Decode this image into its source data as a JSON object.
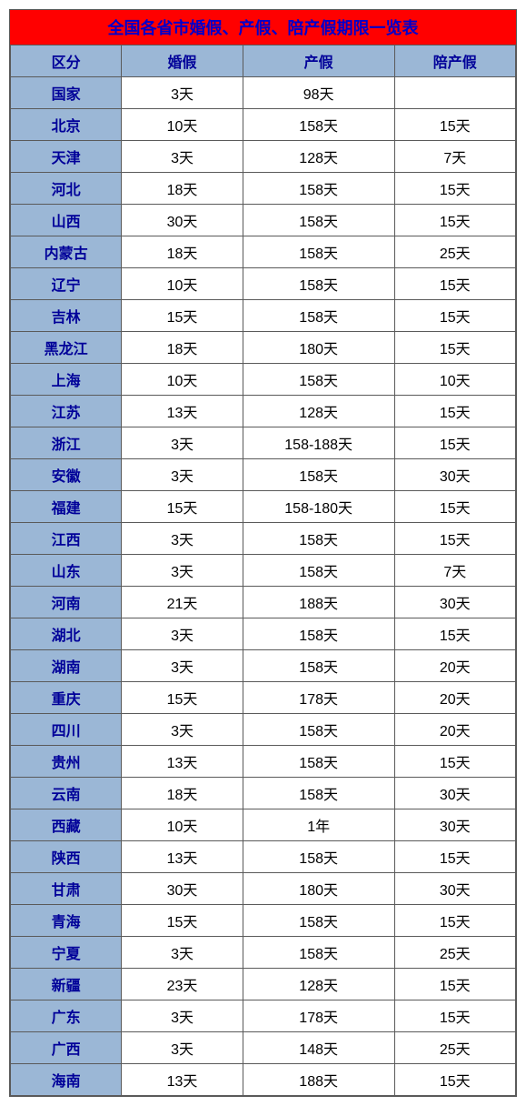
{
  "title": "全国各省市婚假、产假、陪产假期限一览表",
  "columns": [
    "区分",
    "婚假",
    "产假",
    "陪产假"
  ],
  "rows": [
    {
      "region": "国家",
      "marriage": "3天",
      "maternity": "98天",
      "paternity": ""
    },
    {
      "region": "北京",
      "marriage": "10天",
      "maternity": "158天",
      "paternity": "15天"
    },
    {
      "region": "天津",
      "marriage": "3天",
      "maternity": "128天",
      "paternity": "7天"
    },
    {
      "region": "河北",
      "marriage": "18天",
      "maternity": "158天",
      "paternity": "15天"
    },
    {
      "region": "山西",
      "marriage": "30天",
      "maternity": "158天",
      "paternity": "15天"
    },
    {
      "region": "内蒙古",
      "marriage": "18天",
      "maternity": "158天",
      "paternity": "25天"
    },
    {
      "region": "辽宁",
      "marriage": "10天",
      "maternity": "158天",
      "paternity": "15天"
    },
    {
      "region": "吉林",
      "marriage": "15天",
      "maternity": "158天",
      "paternity": "15天"
    },
    {
      "region": "黑龙江",
      "marriage": "18天",
      "maternity": "180天",
      "paternity": "15天"
    },
    {
      "region": "上海",
      "marriage": "10天",
      "maternity": "158天",
      "paternity": "10天"
    },
    {
      "region": "江苏",
      "marriage": "13天",
      "maternity": "128天",
      "paternity": "15天"
    },
    {
      "region": "浙江",
      "marriage": "3天",
      "maternity": "158-188天",
      "paternity": "15天"
    },
    {
      "region": "安徽",
      "marriage": "3天",
      "maternity": "158天",
      "paternity": "30天"
    },
    {
      "region": "福建",
      "marriage": "15天",
      "maternity": "158-180天",
      "paternity": "15天"
    },
    {
      "region": "江西",
      "marriage": "3天",
      "maternity": "158天",
      "paternity": "15天"
    },
    {
      "region": "山东",
      "marriage": "3天",
      "maternity": "158天",
      "paternity": "7天"
    },
    {
      "region": "河南",
      "marriage": "21天",
      "maternity": "188天",
      "paternity": "30天"
    },
    {
      "region": "湖北",
      "marriage": "3天",
      "maternity": "158天",
      "paternity": "15天"
    },
    {
      "region": "湖南",
      "marriage": "3天",
      "maternity": "158天",
      "paternity": "20天"
    },
    {
      "region": "重庆",
      "marriage": "15天",
      "maternity": "178天",
      "paternity": "20天"
    },
    {
      "region": "四川",
      "marriage": "3天",
      "maternity": "158天",
      "paternity": "20天"
    },
    {
      "region": "贵州",
      "marriage": "13天",
      "maternity": "158天",
      "paternity": "15天"
    },
    {
      "region": "云南",
      "marriage": "18天",
      "maternity": "158天",
      "paternity": "30天"
    },
    {
      "region": "西藏",
      "marriage": "10天",
      "maternity": "1年",
      "paternity": "30天"
    },
    {
      "region": "陕西",
      "marriage": "13天",
      "maternity": "158天",
      "paternity": "15天"
    },
    {
      "region": "甘肃",
      "marriage": "30天",
      "maternity": "180天",
      "paternity": "30天"
    },
    {
      "region": "青海",
      "marriage": "15天",
      "maternity": "158天",
      "paternity": "15天"
    },
    {
      "region": "宁夏",
      "marriage": "3天",
      "maternity": "158天",
      "paternity": "25天"
    },
    {
      "region": "新疆",
      "marriage": "23天",
      "maternity": "128天",
      "paternity": "15天"
    },
    {
      "region": "广东",
      "marriage": "3天",
      "maternity": "178天",
      "paternity": "15天"
    },
    {
      "region": "广西",
      "marriage": "3天",
      "maternity": "148天",
      "paternity": "25天"
    },
    {
      "region": "海南",
      "marriage": "13天",
      "maternity": "188天",
      "paternity": "15天"
    }
  ],
  "style": {
    "title_bg": "#ff0000",
    "title_color": "#0000cc",
    "title_fontsize": 18,
    "header_bg": "#9bb7d6",
    "header_color": "#000099",
    "region_bg": "#9bb7d6",
    "region_color": "#000099",
    "data_bg": "#ffffff",
    "data_color": "#000000",
    "border_color": "#5a5a5a",
    "cell_fontsize": 16
  }
}
